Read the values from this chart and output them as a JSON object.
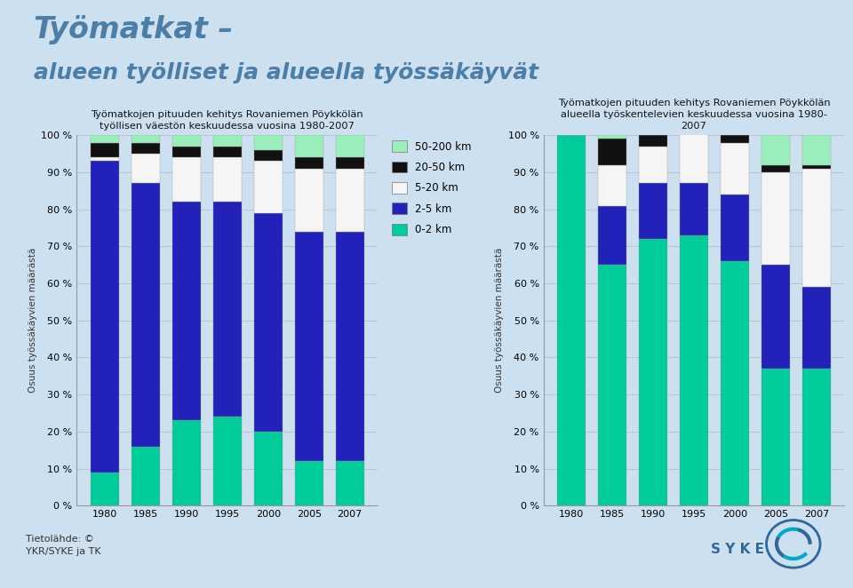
{
  "bg_color": "#cce0f0",
  "chart_bg": "#cce0f0",
  "main_title_line1": "Työmatkat –",
  "main_title_line2": "alueen työlliset ja alueella työssäkäyvät",
  "years": [
    1980,
    1985,
    1990,
    1995,
    2000,
    2005,
    2007
  ],
  "chart1_title_l1": "Työmatkojen pituuden kehitys Rovaniemen Pöykkölän",
  "chart1_title_l2": "työllisen väestön keskuudessa vuosina 1980-2007",
  "chart2_title_l1": "Työmatkojen pituuden kehitys Rovaniemen Pöykkölän",
  "chart2_title_l2": "alueella työskentelevien keskuudessa vuosina 1980-",
  "chart2_title_l3": "2007",
  "ylabel": "Osuus työssäkäyvien määrästä",
  "chart1_data": {
    "0-2 km": [
      9,
      16,
      23,
      24,
      20,
      12,
      12
    ],
    "2-5 km": [
      84,
      71,
      59,
      58,
      59,
      62,
      62
    ],
    "5-20 km": [
      1,
      8,
      12,
      12,
      14,
      17,
      17
    ],
    "20-50 km": [
      4,
      3,
      3,
      3,
      3,
      3,
      3
    ],
    "50-200 km": [
      2,
      2,
      3,
      3,
      4,
      6,
      6
    ]
  },
  "chart2_data": {
    "0-2 km": [
      100,
      65,
      72,
      73,
      66,
      37,
      37
    ],
    "2-5 km": [
      0,
      16,
      15,
      14,
      18,
      28,
      22
    ],
    "5-20 km": [
      0,
      11,
      10,
      14,
      14,
      25,
      32
    ],
    "20-50 km": [
      0,
      7,
      3,
      3,
      2,
      2,
      1
    ],
    "50-200 km": [
      0,
      1,
      0,
      0,
      0,
      8,
      8
    ]
  },
  "categories": [
    "0-2 km",
    "2-5 km",
    "5-20 km",
    "20-50 km",
    "50-200 km"
  ],
  "colors": {
    "0-2 km": "#00cc99",
    "2-5 km": "#2222bb",
    "5-20 km": "#f5f5f5",
    "20-50 km": "#111111",
    "50-200 km": "#99eebb"
  },
  "footer": "Tietolähde: ©\nYKR/SYKE ja TK"
}
